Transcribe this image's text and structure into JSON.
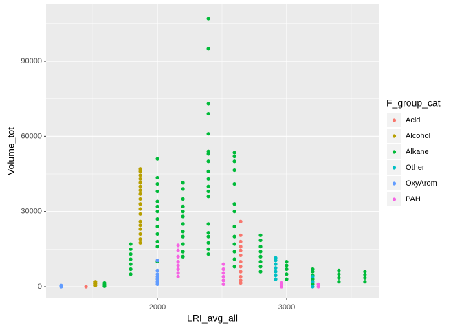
{
  "chart_data": {
    "type": "scatter",
    "x_label": "LRI_avg_all",
    "y_label": "Volume_tot",
    "legend_title": "F_group_cat",
    "xlim": [
      1138,
      3713
    ],
    "ylim": [
      -4665,
      112780
    ],
    "xticks": [
      2000,
      3000
    ],
    "x_minor_ticks": [
      1500,
      2500,
      3500
    ],
    "yticks": [
      0,
      30000,
      60000,
      90000
    ],
    "y_minor_ticks": [
      15000,
      45000,
      75000,
      105000
    ],
    "grid": true,
    "legend_position": "right",
    "series": [
      {
        "name": "Acid",
        "color": "#F8766D",
        "x": [
          1447,
          2644,
          2644,
          2644,
          2644,
          2644,
          2644,
          2644,
          2644,
          2644,
          2644,
          2644,
          2644
        ],
        "y": [
          0,
          26000,
          20500,
          18000,
          16000,
          14500,
          12500,
          10000,
          8000,
          6000,
          4000,
          2500,
          1500
        ]
      },
      {
        "name": "Alcohol",
        "color": "#B79F00",
        "x": [
          1520,
          1520,
          1520,
          1867,
          1867,
          1867,
          1867,
          1867,
          1867,
          1867,
          1867,
          1867,
          1867,
          1867,
          1867,
          1867,
          1867,
          1867,
          1867,
          1867,
          1867
        ],
        "y": [
          500,
          1200,
          2000,
          17500,
          19000,
          21000,
          23000,
          24500,
          26000,
          29000,
          31000,
          33000,
          35000,
          37000,
          38500,
          40000,
          41500,
          43000,
          44500,
          46000,
          47000
        ]
      },
      {
        "name": "Alkane",
        "color": "#00BA38",
        "x": [
          1590,
          1590,
          1590,
          1793,
          1793,
          1793,
          1793,
          1793,
          1793,
          1793,
          2000,
          2000,
          2000,
          2000,
          2000,
          2000,
          2000,
          2000,
          2000,
          2000,
          2000,
          2000,
          2000,
          2197,
          2197,
          2197,
          2197,
          2197,
          2197,
          2197,
          2197,
          2197,
          2197,
          2197,
          2197,
          2394,
          2394,
          2394,
          2394,
          2394,
          2394,
          2394,
          2394,
          2394,
          2394,
          2394,
          2394,
          2394,
          2394,
          2394,
          2394,
          2394,
          2394,
          2394,
          2596,
          2596,
          2596,
          2596,
          2596,
          2596,
          2596,
          2596,
          2596,
          2596,
          2596,
          2596,
          2596,
          2798,
          2798,
          2798,
          2798,
          2798,
          2798,
          2798,
          2798,
          3000,
          3000,
          3000,
          3000,
          3000,
          3202,
          3202,
          3202,
          3202,
          3202,
          3404,
          3404,
          3404,
          3404,
          3606,
          3606,
          3606,
          3606
        ],
        "y": [
          200,
          800,
          1500,
          5000,
          7000,
          9000,
          11000,
          13000,
          15000,
          17000,
          10000,
          16000,
          18000,
          21000,
          24000,
          27000,
          30000,
          32000,
          34000,
          38000,
          41000,
          43500,
          51000,
          12000,
          14000,
          17000,
          20000,
          22000,
          25000,
          28000,
          30000,
          32000,
          35000,
          39000,
          41500,
          13000,
          15000,
          17500,
          20000,
          21500,
          25000,
          36000,
          38000,
          40000,
          43000,
          46000,
          50000,
          53000,
          54000,
          61000,
          69000,
          73000,
          95000,
          107000,
          8000,
          11000,
          14000,
          17000,
          20000,
          24000,
          30000,
          33000,
          41000,
          46500,
          50000,
          52000,
          53500,
          6000,
          8000,
          10000,
          12000,
          14000,
          16000,
          18500,
          20500,
          3000,
          5000,
          7000,
          8500,
          10000,
          1000,
          3000,
          4500,
          6000,
          7000,
          2000,
          3500,
          5000,
          6500,
          2000,
          3500,
          4800,
          6000
        ]
      },
      {
        "name": "Other",
        "color": "#00BFC4",
        "x": [
          2915,
          2915,
          2915,
          2915,
          2915,
          2915,
          2915,
          3202,
          3202,
          3202
        ],
        "y": [
          3000,
          4500,
          6000,
          7500,
          9000,
          10500,
          11500,
          0,
          2000,
          4000
        ]
      },
      {
        "name": "OxyArom",
        "color": "#619CFF",
        "x": [
          1255,
          1255,
          2000,
          2000,
          2000,
          2000,
          2000,
          2000,
          2000
        ],
        "y": [
          0,
          500,
          1000,
          2000,
          3000,
          4000,
          5000,
          6500,
          10500
        ]
      },
      {
        "name": "PAH",
        "color": "#F564E3",
        "x": [
          2160,
          2160,
          2160,
          2160,
          2160,
          2160,
          2160,
          2160,
          2511,
          2511,
          2511,
          2511,
          2511,
          2511,
          2960,
          2960,
          2960,
          3245,
          3245
        ],
        "y": [
          4000,
          5500,
          7000,
          8500,
          10000,
          12000,
          14500,
          16500,
          1000,
          2500,
          4000,
          5500,
          7000,
          9000,
          0,
          800,
          1500,
          0,
          1000
        ]
      }
    ]
  }
}
